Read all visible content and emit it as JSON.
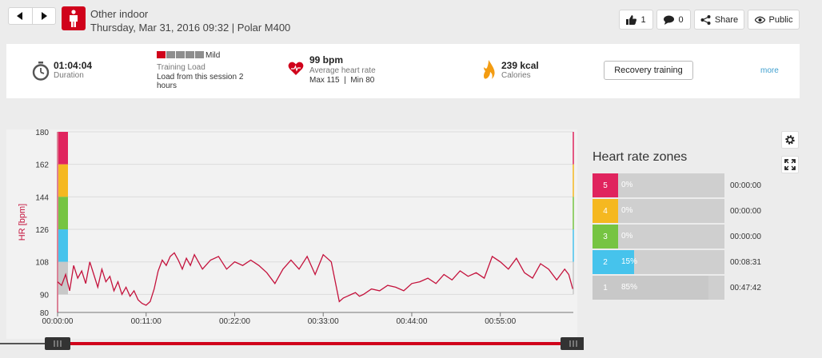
{
  "header": {
    "title": "Other indoor",
    "subtitle": "Thursday, Mar 31, 2016 09:32 | Polar M400",
    "likes": "1",
    "comments": "0",
    "share_label": "Share",
    "visibility_label": "Public"
  },
  "summary": {
    "duration_value": "01:04:04",
    "duration_label": "Duration",
    "load_level": "Mild",
    "load_label": "Training Load",
    "load_text": "Load from this session 2 hours",
    "hr_value": "99 bpm",
    "hr_label": "Average heart rate",
    "hr_minmax": "Max 115  |  Min 80",
    "calories_value": "239 kcal",
    "calories_label": "Calories",
    "recovery_button": "Recovery training",
    "more_link": "more"
  },
  "icons": {
    "prev": "chevron-left-icon",
    "next": "chevron-right-icon",
    "sport": "person-icon",
    "likes": "thumbs-up-icon",
    "comments": "comment-icon",
    "share": "share-icon",
    "visibility": "eye-icon",
    "duration": "stopwatch-icon",
    "hr": "heart-icon",
    "calories": "flame-icon",
    "settings": "gear-icon",
    "fullscreen": "fullscreen-icon"
  },
  "colors": {
    "brand": "#d0021b",
    "hr_line": "#c4123c",
    "link": "#3f9fcf",
    "zone5": "#e0245e",
    "zone4": "#f5b820",
    "zone3": "#76c442",
    "zone2": "#46c3ec",
    "zone1": "#c8c8c8"
  },
  "zones": {
    "title": "Heart rate zones",
    "items": [
      {
        "zone": "5",
        "percent": "0%",
        "fraction": 0.0,
        "time": "00:00:00",
        "color": "#e0245e"
      },
      {
        "zone": "4",
        "percent": "0%",
        "fraction": 0.0,
        "time": "00:00:00",
        "color": "#f5b820"
      },
      {
        "zone": "3",
        "percent": "0%",
        "fraction": 0.0,
        "time": "00:00:00",
        "color": "#76c442"
      },
      {
        "zone": "2",
        "percent": "15%",
        "fraction": 0.15,
        "time": "00:08:31",
        "color": "#46c3ec"
      },
      {
        "zone": "1",
        "percent": "85%",
        "fraction": 0.85,
        "time": "00:47:42",
        "color": "#c8c8c8"
      }
    ]
  },
  "chart_data": {
    "type": "line",
    "ylabel": "HR [bpm]",
    "xlabel": "",
    "ylim": [
      80,
      180
    ],
    "xlim_minutes": [
      0,
      64.07
    ],
    "y_ticks": [
      180,
      162,
      144,
      126,
      108,
      90,
      80
    ],
    "x_ticks": [
      "00:00:00",
      "00:11:00",
      "00:22:00",
      "00:33:00",
      "00:44:00",
      "00:55:00"
    ],
    "x_tick_minutes": [
      0,
      11,
      22,
      33,
      44,
      55
    ],
    "grid": true,
    "zone_bands": [
      {
        "from": 162,
        "to": 180,
        "color": "#e0245e"
      },
      {
        "from": 144,
        "to": 162,
        "color": "#f5b820"
      },
      {
        "from": 126,
        "to": 144,
        "color": "#76c442"
      },
      {
        "from": 108,
        "to": 126,
        "color": "#46c3ec"
      },
      {
        "from": 90,
        "to": 108,
        "color": "#c8c8c8"
      }
    ],
    "series": [
      {
        "color": "#c4123c",
        "x_minutes": [
          0,
          0.5,
          1,
          1.5,
          2,
          2.5,
          3,
          3.5,
          4,
          4.5,
          5,
          5.5,
          6,
          6.5,
          7,
          7.5,
          8,
          8.5,
          9,
          9.5,
          10,
          10.5,
          11,
          11.5,
          12,
          12.5,
          13,
          13.5,
          14,
          14.5,
          15,
          15.5,
          16,
          16.5,
          17,
          18,
          19,
          20,
          21,
          22,
          23,
          24,
          25,
          26,
          27,
          28,
          29,
          30,
          31,
          32,
          33,
          34,
          35,
          35.5,
          36,
          36.5,
          37,
          37.5,
          38,
          39,
          40,
          41,
          42,
          43,
          44,
          45,
          46,
          47,
          48,
          49,
          50,
          51,
          52,
          53,
          54,
          55,
          56,
          57,
          58,
          59,
          60,
          61,
          62,
          63,
          63.5,
          64
        ],
        "values": [
          97,
          95,
          101,
          92,
          106,
          99,
          103,
          96,
          108,
          101,
          94,
          104,
          97,
          100,
          92,
          97,
          90,
          94,
          89,
          92,
          87,
          85,
          84,
          86,
          93,
          103,
          109,
          106,
          111,
          113,
          109,
          104,
          110,
          106,
          112,
          104,
          109,
          111,
          104,
          108,
          106,
          109,
          106,
          102,
          96,
          104,
          109,
          104,
          111,
          101,
          112,
          108,
          86,
          88,
          89,
          90,
          91,
          89,
          90,
          93,
          92,
          95,
          94,
          92,
          96,
          97,
          99,
          96,
          101,
          98,
          103,
          100,
          102,
          99,
          111,
          108,
          104,
          110,
          102,
          99,
          107,
          104,
          98,
          104,
          101,
          93
        ]
      }
    ]
  }
}
